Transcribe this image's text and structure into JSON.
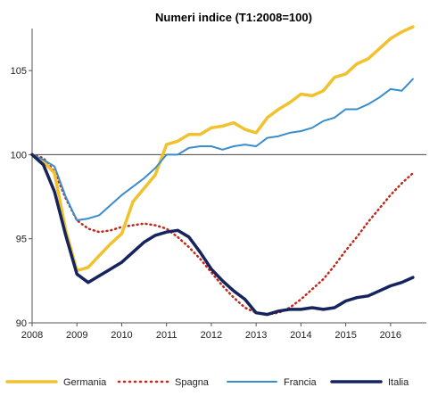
{
  "chart_data": {
    "type": "line",
    "title": "Numeri indice (T1:2008=100)",
    "xlabel": "",
    "ylabel": "",
    "x_start": 2008.0,
    "x_step": 0.25,
    "xlim": [
      2008,
      2016.8
    ],
    "ylim": [
      90,
      107.5
    ],
    "x_ticks": [
      2008,
      2009,
      2010,
      2011,
      2012,
      2013,
      2014,
      2015,
      2016
    ],
    "x_tick_labels": [
      "2008",
      "2009",
      "2010",
      "2011",
      "2012",
      "2013",
      "2014",
      "2015",
      "2016"
    ],
    "y_ticks": [
      90,
      95,
      100,
      105
    ],
    "y_tick_labels": [
      "90",
      "95",
      "100",
      "105"
    ],
    "grid": false,
    "legend_position": "bottom",
    "series": [
      {
        "name": "Germania",
        "color": "#F2C12E",
        "style": "solid",
        "values": [
          100.0,
          99.6,
          98.9,
          95.5,
          93.1,
          93.3,
          94.0,
          94.7,
          95.3,
          97.2,
          98.0,
          98.8,
          100.6,
          100.8,
          101.2,
          101.2,
          101.6,
          101.7,
          101.9,
          101.5,
          101.3,
          102.2,
          102.7,
          103.1,
          103.6,
          103.5,
          103.8,
          104.6,
          104.8,
          105.4,
          105.7,
          106.3,
          106.9,
          107.3,
          107.6
        ]
      },
      {
        "name": "Spagna",
        "color": "#C0281C",
        "style": "dotted",
        "values": [
          100.0,
          99.8,
          99.0,
          97.4,
          96.1,
          95.6,
          95.4,
          95.5,
          95.7,
          95.8,
          95.9,
          95.8,
          95.6,
          95.1,
          94.5,
          93.8,
          93.0,
          92.2,
          91.5,
          90.9,
          90.6,
          90.5,
          90.6,
          90.9,
          91.4,
          92.0,
          92.6,
          93.4,
          94.3,
          95.1,
          96.0,
          96.8,
          97.6,
          98.3,
          98.9
        ]
      },
      {
        "name": "Francia",
        "color": "#3A8DCB",
        "style": "solid",
        "values": [
          100.0,
          99.7,
          99.3,
          97.5,
          96.1,
          96.2,
          96.4,
          97.0,
          97.6,
          98.1,
          98.6,
          99.2,
          100.0,
          100.0,
          100.4,
          100.5,
          100.5,
          100.3,
          100.5,
          100.6,
          100.5,
          101.0,
          101.1,
          101.3,
          101.4,
          101.6,
          102.0,
          102.2,
          102.7,
          102.7,
          103.0,
          103.4,
          103.9,
          103.8,
          104.5
        ]
      },
      {
        "name": "Italia",
        "color": "#16245E",
        "style": "solid",
        "values": [
          100.0,
          99.4,
          97.8,
          95.2,
          92.9,
          92.4,
          92.8,
          93.2,
          93.6,
          94.2,
          94.8,
          95.2,
          95.4,
          95.5,
          95.1,
          94.2,
          93.2,
          92.5,
          91.9,
          91.4,
          90.6,
          90.5,
          90.7,
          90.8,
          90.8,
          90.9,
          90.8,
          90.9,
          91.3,
          91.5,
          91.6,
          91.9,
          92.2,
          92.4,
          92.7
        ]
      }
    ]
  }
}
